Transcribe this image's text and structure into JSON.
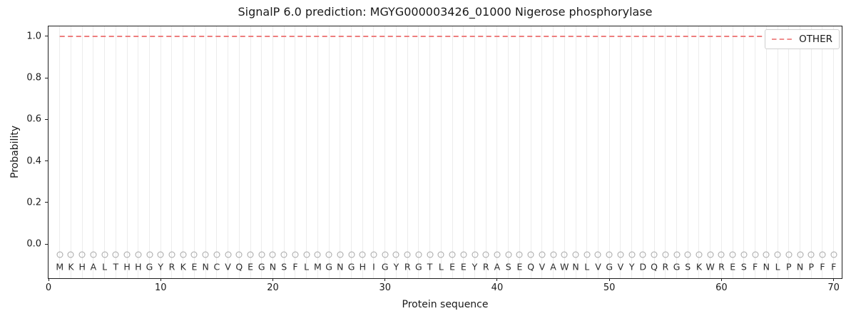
{
  "chart_data": {
    "type": "line",
    "title": "SignalP 6.0 prediction: MGYG000003426_01000 Nigerose phosphorylase",
    "xlabel": "Protein sequence",
    "ylabel": "Probability",
    "xlim": [
      0,
      70.72
    ],
    "ylim": [
      -0.164,
      1.048
    ],
    "x_ticks": [
      0,
      10,
      20,
      30,
      40,
      50,
      60,
      70
    ],
    "y_ticks": [
      "0.0",
      "0.2",
      "0.4",
      "0.6",
      "0.8",
      "1.0"
    ],
    "grid": "vertical-line-per-residue",
    "grid_color": "#ececec",
    "legend_position": "upper-right",
    "sequence": "MKHALTHHGYRKENCVQEGNSFLMGNGHIGYRGTLEEYRASEQVAWNLVGVYDQRGSKWRESFNLPNPFF",
    "sequence_start": 1,
    "sequence_end": 70,
    "residue_marker": {
      "shape": "circle-outline",
      "y": -0.05,
      "color": "#a6a6a6"
    },
    "residue_letter_y": -0.11,
    "series": [
      {
        "name": "OTHER",
        "color": "#ee7e7e",
        "line_style": "dashed",
        "x_start": 1,
        "x_end": 70,
        "constant_value": 1.0
      }
    ]
  }
}
